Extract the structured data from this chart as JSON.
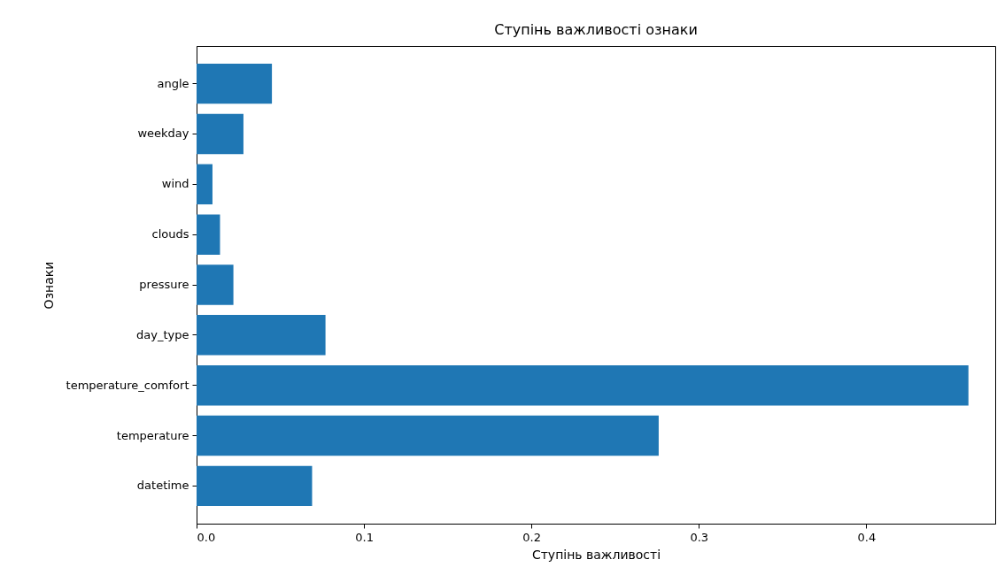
{
  "chart_data": {
    "type": "bar",
    "orientation": "horizontal",
    "title": "Ступінь важливості ознаки",
    "xlabel": "Ступінь важливості",
    "ylabel": "Ознаки",
    "categories": [
      "angle",
      "weekday",
      "wind",
      "clouds",
      "pressure",
      "day_type",
      "temperature_comfort",
      "temperature",
      "datetime"
    ],
    "values": [
      0.045,
      0.028,
      0.0095,
      0.014,
      0.022,
      0.077,
      0.461,
      0.276,
      0.069
    ],
    "color": "#1f77b4",
    "xlim": [
      0,
      0.477
    ],
    "xticks": [
      {
        "value": 0,
        "label": "0.0"
      },
      0.1,
      0.2,
      0.3,
      0.4
    ],
    "grid": false
  }
}
